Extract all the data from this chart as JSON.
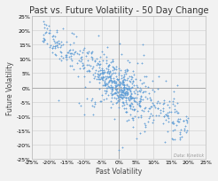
{
  "title": "Past vs. Future Volatility - 50 Day Change",
  "xlabel": "Past Volatility",
  "ylabel": "Future Volatility",
  "watermark": "Data: Kinetick",
  "x_lim": [
    -0.25,
    0.25
  ],
  "y_lim": [
    -0.25,
    0.25
  ],
  "x_ticks": [
    -0.25,
    -0.2,
    -0.15,
    -0.1,
    -0.05,
    0.0,
    0.05,
    0.1,
    0.15,
    0.2,
    0.25
  ],
  "y_ticks": [
    -0.25,
    -0.2,
    -0.15,
    -0.1,
    -0.05,
    0.0,
    0.05,
    0.1,
    0.15,
    0.2,
    0.25
  ],
  "marker_color": "#5B9BD5",
  "marker_size": 4,
  "seed": 42,
  "n_points": 700,
  "background_color": "#f2f2f2",
  "plot_bg_color": "#f2f2f2",
  "title_fontsize": 7.0,
  "label_fontsize": 5.5,
  "tick_fontsize": 4.5
}
